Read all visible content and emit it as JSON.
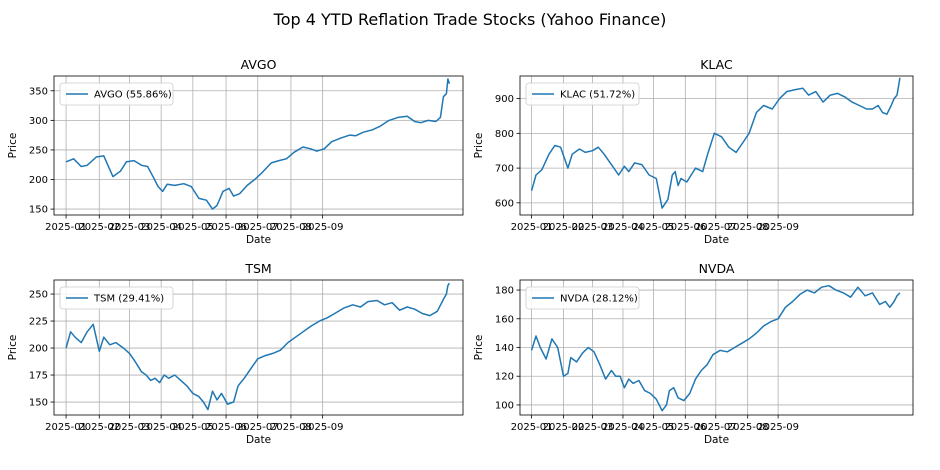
{
  "figure": {
    "title": "Top 4 YTD Reflation Trade Stocks (Yahoo Finance)"
  },
  "chart_data": [
    {
      "type": "line",
      "title": "AVGO",
      "xlabel": "Date",
      "ylabel": "Price",
      "ylim": [
        140,
        375
      ],
      "yticks": [
        150,
        200,
        250,
        300,
        350
      ],
      "grid": true,
      "legend_position": "upper-left",
      "color": "#1f77b4",
      "series": [
        {
          "name": "AVGO (55.86%)",
          "x": [
            0,
            5,
            10,
            14,
            20,
            25,
            31,
            36,
            40,
            45,
            50,
            54,
            58,
            61,
            64,
            67,
            72,
            78,
            83,
            88,
            93,
            97,
            100,
            104,
            108,
            111,
            115,
            120,
            125,
            130,
            136,
            141,
            146,
            151,
            157,
            162,
            166,
            171,
            176,
            182,
            188,
            192,
            197,
            203,
            208,
            214,
            220,
            226,
            231,
            235,
            240,
            245,
            248,
            250,
            252,
            253,
            254
          ],
          "values": [
            230,
            235,
            222,
            224,
            238,
            240,
            205,
            214,
            230,
            232,
            224,
            222,
            203,
            188,
            180,
            192,
            190,
            193,
            188,
            168,
            165,
            150,
            156,
            180,
            185,
            172,
            176,
            190,
            200,
            212,
            228,
            232,
            235,
            246,
            255,
            252,
            248,
            252,
            264,
            270,
            275,
            274,
            280,
            284,
            290,
            300,
            305,
            307,
            298,
            296,
            300,
            298,
            305,
            340,
            345,
            370,
            362
          ]
        }
      ]
    },
    {
      "type": "line",
      "title": "KLAC",
      "xlabel": "Date",
      "ylabel": "Price",
      "ylim": [
        565,
        965
      ],
      "yticks": [
        600,
        700,
        800,
        900
      ],
      "grid": true,
      "legend_position": "upper-left",
      "color": "#1f77b4",
      "series": [
        {
          "name": "KLAC (51.72%)",
          "x": [
            0,
            3,
            7,
            12,
            16,
            20,
            25,
            28,
            33,
            37,
            42,
            46,
            50,
            55,
            60,
            64,
            67,
            71,
            76,
            81,
            86,
            90,
            94,
            97,
            99,
            101,
            103,
            107,
            113,
            118,
            121,
            126,
            131,
            136,
            141,
            146,
            150,
            155,
            160,
            166,
            171,
            176,
            181,
            187,
            191,
            196,
            201,
            206,
            211,
            216,
            221,
            226,
            231,
            235,
            239,
            242,
            245,
            248,
            250,
            252,
            253,
            254
          ],
          "values": [
            635,
            680,
            695,
            740,
            765,
            760,
            700,
            740,
            755,
            745,
            750,
            760,
            740,
            710,
            680,
            705,
            690,
            715,
            710,
            680,
            670,
            585,
            610,
            680,
            690,
            650,
            670,
            660,
            700,
            690,
            735,
            800,
            790,
            760,
            745,
            775,
            800,
            860,
            880,
            870,
            900,
            920,
            925,
            930,
            910,
            920,
            890,
            910,
            915,
            905,
            890,
            880,
            870,
            870,
            880,
            860,
            855,
            880,
            900,
            910,
            935,
            960
          ]
        }
      ]
    },
    {
      "type": "line",
      "title": "TSM",
      "xlabel": "Date",
      "ylabel": "Price",
      "ylim": [
        138,
        263
      ],
      "yticks": [
        150,
        175,
        200,
        225,
        250
      ],
      "grid": true,
      "legend_position": "upper-left",
      "color": "#1f77b4",
      "series": [
        {
          "name": "TSM (29.41%)",
          "x": [
            0,
            3,
            6,
            10,
            14,
            18,
            22,
            25,
            29,
            33,
            38,
            42,
            46,
            50,
            53,
            56,
            59,
            62,
            65,
            68,
            72,
            76,
            80,
            84,
            88,
            91,
            94,
            97,
            100,
            103,
            107,
            111,
            114,
            118,
            122,
            127,
            132,
            137,
            142,
            147,
            152,
            157,
            162,
            168,
            173,
            178,
            184,
            190,
            195,
            200,
            206,
            211,
            216,
            221,
            226,
            231,
            236,
            241,
            246,
            250,
            252,
            253,
            254
          ],
          "values": [
            200,
            215,
            210,
            205,
            215,
            222,
            197,
            210,
            203,
            205,
            200,
            195,
            187,
            178,
            175,
            170,
            172,
            168,
            175,
            172,
            175,
            170,
            165,
            158,
            155,
            150,
            143,
            160,
            152,
            158,
            148,
            150,
            165,
            172,
            180,
            190,
            193,
            195,
            198,
            205,
            210,
            215,
            220,
            225,
            228,
            232,
            237,
            240,
            238,
            243,
            244,
            240,
            242,
            235,
            238,
            236,
            232,
            230,
            234,
            245,
            250,
            258,
            260
          ]
        }
      ]
    },
    {
      "type": "line",
      "title": "NVDA",
      "xlabel": "Date",
      "ylabel": "Price",
      "ylim": [
        93,
        187
      ],
      "yticks": [
        100,
        120,
        140,
        160,
        180
      ],
      "grid": true,
      "legend_position": "upper-left",
      "color": "#1f77b4",
      "series": [
        {
          "name": "NVDA (28.12%)",
          "x": [
            0,
            3,
            6,
            10,
            14,
            18,
            22,
            25,
            27,
            31,
            35,
            39,
            43,
            47,
            51,
            55,
            58,
            61,
            64,
            67,
            70,
            74,
            78,
            82,
            86,
            90,
            93,
            95,
            98,
            101,
            105,
            109,
            113,
            117,
            121,
            125,
            130,
            135,
            140,
            145,
            150,
            155,
            160,
            165,
            170,
            175,
            180,
            185,
            190,
            195,
            200,
            205,
            210,
            215,
            220,
            225,
            230,
            235,
            240,
            244,
            247,
            250,
            252,
            254
          ],
          "values": [
            138,
            148,
            140,
            132,
            146,
            140,
            120,
            122,
            133,
            130,
            136,
            140,
            137,
            128,
            118,
            124,
            120,
            120,
            112,
            118,
            115,
            117,
            110,
            108,
            104,
            96,
            100,
            110,
            112,
            105,
            103,
            108,
            118,
            124,
            128,
            135,
            138,
            137,
            140,
            143,
            146,
            150,
            155,
            158,
            160,
            168,
            172,
            177,
            180,
            178,
            182,
            183,
            180,
            178,
            175,
            182,
            176,
            178,
            170,
            172,
            168,
            172,
            176,
            178
          ]
        }
      ]
    }
  ],
  "axes": {
    "xticks": [
      "2025-01",
      "2025-02",
      "2025-03",
      "2025-04",
      "2025-05",
      "2025-06",
      "2025-07",
      "2025-08",
      "2025-09"
    ],
    "x_tick_positions": [
      0,
      22,
      42,
      63,
      84,
      106,
      127,
      149,
      170
    ]
  }
}
